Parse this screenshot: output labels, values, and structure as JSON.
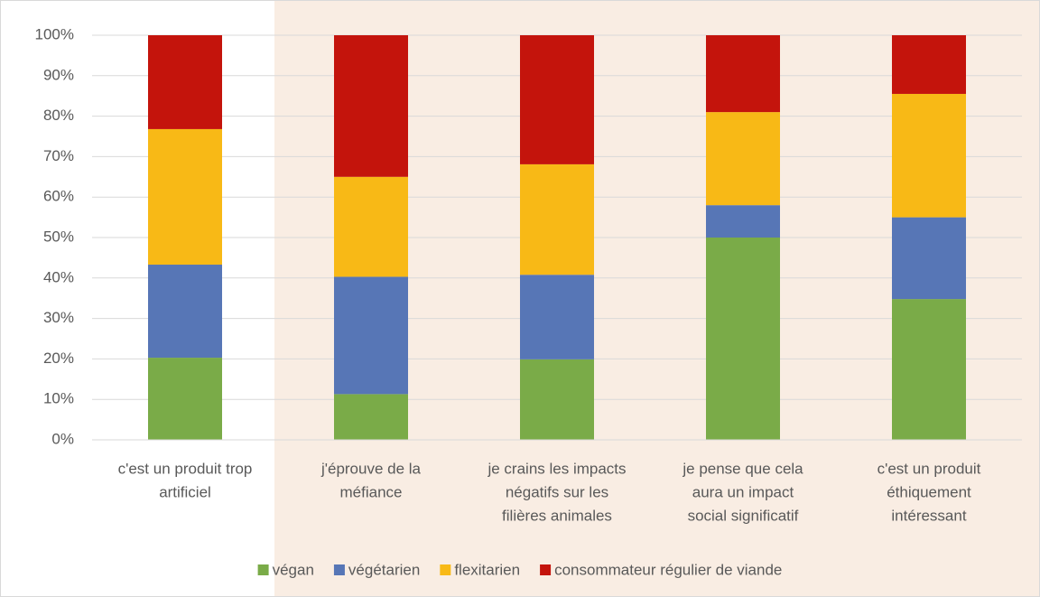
{
  "chart_data": {
    "type": "stacked_bar",
    "categories": [
      [
        "c'est un produit trop",
        "artificiel"
      ],
      [
        "j'éprouve de la",
        "méfiance"
      ],
      [
        "je crains les impacts",
        "négatifs sur les",
        "filières animales"
      ],
      [
        "je pense que cela",
        "aura un impact",
        "social significatif"
      ],
      [
        "c'est un produit",
        "éthiquement",
        "intéressant"
      ]
    ],
    "series": [
      {
        "name": "végan",
        "color": "#7aab48",
        "values": [
          20.3,
          11.3,
          19.9,
          50,
          34.8
        ]
      },
      {
        "name": "végétarien",
        "color": "#5776b6",
        "values": [
          23,
          29,
          20.9,
          8,
          20.2
        ]
      },
      {
        "name": "flexitarien",
        "color": "#f8b916",
        "values": [
          33.5,
          24.7,
          27.3,
          23,
          30.5
        ]
      },
      {
        "name": "consommateur régulier de viande",
        "color": "#c4140c",
        "values": [
          23.2,
          35,
          31.9,
          19,
          14.5
        ]
      }
    ],
    "ylim": [
      0,
      100
    ],
    "yticks": [
      {
        "value": 0,
        "label": "0%"
      },
      {
        "value": 10,
        "label": "10%"
      },
      {
        "value": 20,
        "label": "20%"
      },
      {
        "value": 30,
        "label": "30%"
      },
      {
        "value": 40,
        "label": "40%"
      },
      {
        "value": 50,
        "label": "50%"
      },
      {
        "value": 60,
        "label": "60%"
      },
      {
        "value": 70,
        "label": "70%"
      },
      {
        "value": 80,
        "label": "80%"
      },
      {
        "value": 90,
        "label": "90%"
      },
      {
        "value": 100,
        "label": "100%"
      }
    ],
    "grid": true,
    "legend": "bottom"
  }
}
